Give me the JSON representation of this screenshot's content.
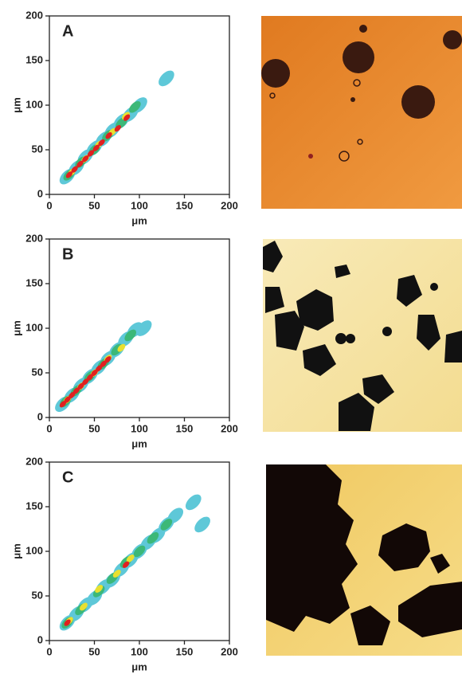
{
  "chart_data": [
    {
      "type": "density",
      "panel_label": "A",
      "xlabel": "μm",
      "ylabel": "μm",
      "xlim": [
        0,
        200
      ],
      "ylim": [
        0,
        200
      ],
      "xticks": [
        0,
        50,
        100,
        150,
        200
      ],
      "yticks": [
        0,
        50,
        100,
        150,
        200
      ],
      "series": [
        {
          "color": "#5ec8d8",
          "x": [
            20,
            30,
            40,
            50,
            60,
            70,
            80,
            90,
            100,
            130
          ],
          "y": [
            20,
            30,
            42,
            52,
            62,
            72,
            82,
            90,
            100,
            130
          ]
        },
        {
          "color": "#3cb878",
          "x": [
            22,
            35,
            50,
            65,
            80,
            95
          ],
          "y": [
            22,
            36,
            50,
            66,
            80,
            98
          ]
        },
        {
          "color": "#e8e030",
          "x": [
            25,
            40,
            55,
            70,
            85
          ],
          "y": [
            25,
            40,
            56,
            70,
            88
          ]
        },
        {
          "color": "#e02020",
          "x": [
            22,
            28,
            34,
            40,
            46,
            52,
            58,
            66,
            76,
            86
          ],
          "y": [
            22,
            28,
            34,
            40,
            46,
            52,
            58,
            66,
            74,
            86
          ]
        }
      ]
    },
    {
      "type": "density",
      "panel_label": "B",
      "xlabel": "μm",
      "ylabel": "μm",
      "xlim": [
        0,
        200
      ],
      "ylim": [
        0,
        200
      ],
      "xticks": [
        0,
        50,
        100,
        150,
        200
      ],
      "yticks": [
        0,
        50,
        100,
        150,
        200
      ],
      "series": [
        {
          "color": "#5ec8d8",
          "x": [
            15,
            25,
            35,
            45,
            55,
            65,
            75,
            85,
            95,
            105
          ],
          "y": [
            15,
            25,
            36,
            46,
            56,
            66,
            76,
            88,
            98,
            100
          ]
        },
        {
          "color": "#3cb878",
          "x": [
            18,
            30,
            45,
            60,
            75,
            90
          ],
          "y": [
            18,
            30,
            46,
            60,
            76,
            92
          ]
        },
        {
          "color": "#e8e030",
          "x": [
            20,
            35,
            50,
            65,
            80
          ],
          "y": [
            20,
            35,
            50,
            66,
            78
          ]
        },
        {
          "color": "#e02020",
          "x": [
            15,
            20,
            25,
            30,
            35,
            40,
            45,
            50,
            55,
            60,
            65
          ],
          "y": [
            15,
            20,
            25,
            30,
            35,
            40,
            45,
            50,
            55,
            60,
            65
          ]
        }
      ]
    },
    {
      "type": "density",
      "panel_label": "C",
      "xlabel": "μm",
      "ylabel": "μm",
      "xlim": [
        0,
        200
      ],
      "ylim": [
        0,
        200
      ],
      "xticks": [
        0,
        50,
        100,
        150,
        200
      ],
      "yticks": [
        0,
        50,
        100,
        150,
        200
      ],
      "series": [
        {
          "color": "#5ec8d8",
          "x": [
            20,
            30,
            40,
            50,
            60,
            70,
            80,
            90,
            100,
            110,
            120,
            130,
            140,
            160,
            170
          ],
          "y": [
            20,
            30,
            40,
            48,
            60,
            68,
            80,
            90,
            100,
            110,
            118,
            130,
            140,
            155,
            130
          ]
        },
        {
          "color": "#3cb878",
          "x": [
            20,
            35,
            55,
            70,
            85,
            100,
            115,
            130
          ],
          "y": [
            20,
            35,
            55,
            70,
            88,
            100,
            115,
            130
          ]
        },
        {
          "color": "#e8e030",
          "x": [
            22,
            38,
            55,
            75,
            90
          ],
          "y": [
            22,
            38,
            58,
            75,
            92
          ]
        },
        {
          "color": "#e02020",
          "x": [
            20,
            85
          ],
          "y": [
            20,
            85
          ]
        }
      ]
    }
  ]
}
